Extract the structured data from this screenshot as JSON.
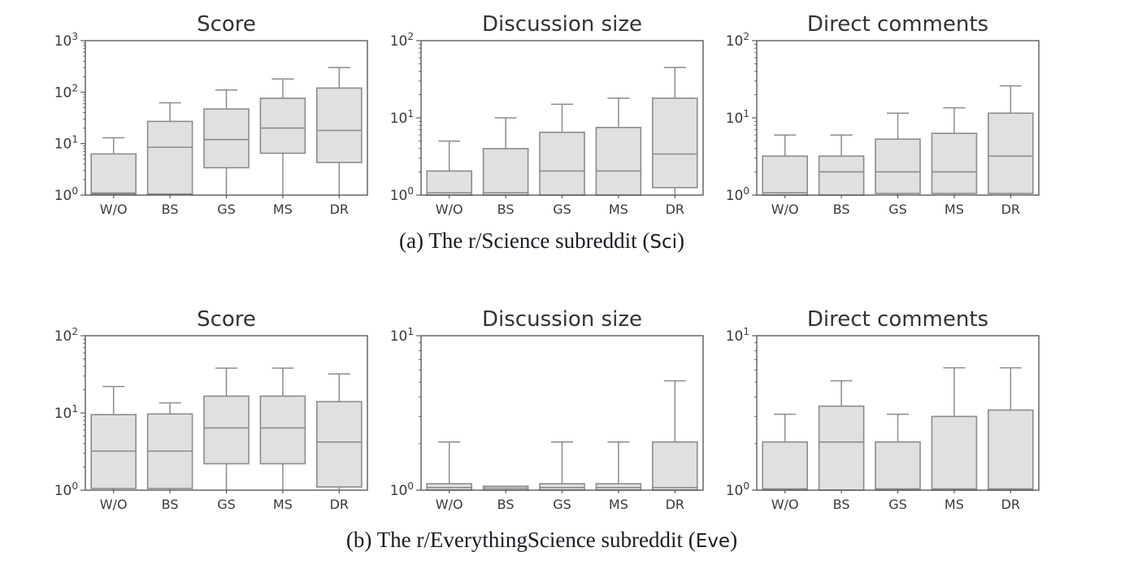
{
  "page": {
    "background": "#ffffff"
  },
  "style": {
    "box_fill": "#e0e0e0",
    "box_stroke": "#8c8c8c",
    "spine_color": "#4f4f4f",
    "tick_text_color": "#3a3a3a",
    "title_color": "#333333",
    "caption_color": "#1b1b24"
  },
  "chart_data": [
    {
      "id": "a",
      "caption": {
        "prefix": "(a) The r/Science subreddit (",
        "tag": "Sci",
        "suffix": ")"
      },
      "subplots": [
        {
          "type": "box",
          "title": "Score",
          "yscale": "log",
          "ylim": [
            1,
            1000
          ],
          "yticks": [
            {
              "base": "10",
              "exp": "0"
            },
            {
              "base": "10",
              "exp": "1"
            },
            {
              "base": "10",
              "exp": "2"
            },
            {
              "base": "10",
              "exp": "3"
            }
          ],
          "categories": [
            "W/O",
            "BS",
            "GS",
            "MS",
            "DR"
          ],
          "boxes": [
            {
              "whislo": 1,
              "q1": 1.05,
              "med": 1.1,
              "q3": 6.3,
              "whishi": 13
            },
            {
              "whislo": 1,
              "q1": 1.05,
              "med": 8.5,
              "q3": 27,
              "whishi": 62
            },
            {
              "whislo": 1,
              "q1": 3.4,
              "med": 12,
              "q3": 47,
              "whishi": 110
            },
            {
              "whislo": 1,
              "q1": 6.5,
              "med": 20,
              "q3": 76,
              "whishi": 180
            },
            {
              "whislo": 1,
              "q1": 4.3,
              "med": 18,
              "q3": 120,
              "whishi": 300
            }
          ]
        },
        {
          "type": "box",
          "title": "Discussion size",
          "yscale": "log",
          "ylim": [
            1,
            100
          ],
          "yticks": [
            {
              "base": "10",
              "exp": "0"
            },
            {
              "base": "10",
              "exp": "1"
            },
            {
              "base": "10",
              "exp": "2"
            }
          ],
          "categories": [
            "W/O",
            "BS",
            "GS",
            "MS",
            "DR"
          ],
          "boxes": [
            {
              "whislo": 1,
              "q1": 1,
              "med": 1.07,
              "q3": 2.05,
              "whishi": 5
            },
            {
              "whislo": 1,
              "q1": 1,
              "med": 1.07,
              "q3": 4,
              "whishi": 10
            },
            {
              "whislo": 1,
              "q1": 1,
              "med": 2.05,
              "q3": 6.5,
              "whishi": 15
            },
            {
              "whislo": 1,
              "q1": 1,
              "med": 2.05,
              "q3": 7.5,
              "whishi": 18
            },
            {
              "whislo": 1,
              "q1": 1.25,
              "med": 3.4,
              "q3": 18,
              "whishi": 45
            }
          ]
        },
        {
          "type": "box",
          "title": "Direct comments",
          "yscale": "log",
          "ylim": [
            1,
            100
          ],
          "yticks": [
            {
              "base": "10",
              "exp": "0"
            },
            {
              "base": "10",
              "exp": "1"
            },
            {
              "base": "10",
              "exp": "2"
            }
          ],
          "categories": [
            "W/O",
            "BS",
            "GS",
            "MS",
            "DR"
          ],
          "boxes": [
            {
              "whislo": 1,
              "q1": 1,
              "med": 1.07,
              "q3": 3.2,
              "whishi": 6
            },
            {
              "whislo": 1,
              "q1": 1,
              "med": 2,
              "q3": 3.2,
              "whishi": 6
            },
            {
              "whislo": 1,
              "q1": 1.05,
              "med": 2,
              "q3": 5.3,
              "whishi": 11.5
            },
            {
              "whislo": 1,
              "q1": 1.05,
              "med": 2,
              "q3": 6.3,
              "whishi": 13.5
            },
            {
              "whislo": 1,
              "q1": 1.05,
              "med": 3.2,
              "q3": 11.5,
              "whishi": 26
            }
          ]
        }
      ]
    },
    {
      "id": "b",
      "caption": {
        "prefix": "(b) The r/EverythingScience subreddit (",
        "tag": "Eve",
        "suffix": ")"
      },
      "subplots": [
        {
          "type": "box",
          "title": "Score",
          "yscale": "log",
          "ylim": [
            1,
            100
          ],
          "yticks": [
            {
              "base": "10",
              "exp": "0"
            },
            {
              "base": "10",
              "exp": "1"
            },
            {
              "base": "10",
              "exp": "2"
            }
          ],
          "categories": [
            "W/O",
            "BS",
            "GS",
            "MS",
            "DR"
          ],
          "boxes": [
            {
              "whislo": 1,
              "q1": 1.05,
              "med": 3.2,
              "q3": 9.5,
              "whishi": 22
            },
            {
              "whislo": 1,
              "q1": 1.05,
              "med": 3.2,
              "q3": 9.7,
              "whishi": 13.5
            },
            {
              "whislo": 1,
              "q1": 2.2,
              "med": 6.4,
              "q3": 16.5,
              "whishi": 38
            },
            {
              "whislo": 1,
              "q1": 2.2,
              "med": 6.4,
              "q3": 16.5,
              "whishi": 38
            },
            {
              "whislo": 1,
              "q1": 1.1,
              "med": 4.2,
              "q3": 14,
              "whishi": 32
            }
          ]
        },
        {
          "type": "box",
          "title": "Discussion size",
          "yscale": "log",
          "ylim": [
            1,
            10
          ],
          "yticks": [
            {
              "base": "10",
              "exp": "0"
            },
            {
              "base": "10",
              "exp": "1"
            }
          ],
          "categories": [
            "W/O",
            "BS",
            "GS",
            "MS",
            "DR"
          ],
          "boxes": [
            {
              "whislo": 1,
              "q1": 1,
              "med": 1.04,
              "q3": 1.1,
              "whishi": 2.05
            },
            {
              "whislo": 1,
              "q1": 1,
              "med": 1.03,
              "q3": 1.06,
              "whishi": 1.06
            },
            {
              "whislo": 1,
              "q1": 1,
              "med": 1.04,
              "q3": 1.1,
              "whishi": 2.05
            },
            {
              "whislo": 1,
              "q1": 1,
              "med": 1.04,
              "q3": 1.1,
              "whishi": 2.05
            },
            {
              "whislo": 1,
              "q1": 1,
              "med": 1.04,
              "q3": 2.05,
              "whishi": 5.1
            }
          ]
        },
        {
          "type": "box",
          "title": "Direct comments",
          "yscale": "log",
          "ylim": [
            1,
            10
          ],
          "yticks": [
            {
              "base": "10",
              "exp": "0"
            },
            {
              "base": "10",
              "exp": "1"
            }
          ],
          "categories": [
            "W/O",
            "BS",
            "GS",
            "MS",
            "DR"
          ],
          "boxes": [
            {
              "whislo": 1,
              "q1": 1,
              "med": 1.02,
              "q3": 2.05,
              "whishi": 3.1
            },
            {
              "whislo": 1,
              "q1": 1,
              "med": 2.05,
              "q3": 3.5,
              "whishi": 5.1
            },
            {
              "whislo": 1,
              "q1": 1,
              "med": 1.02,
              "q3": 2.05,
              "whishi": 3.1
            },
            {
              "whislo": 1,
              "q1": 1,
              "med": 1.02,
              "q3": 3.0,
              "whishi": 6.2
            },
            {
              "whislo": 1,
              "q1": 1,
              "med": 1.02,
              "q3": 3.3,
              "whishi": 6.2
            }
          ]
        }
      ]
    }
  ]
}
